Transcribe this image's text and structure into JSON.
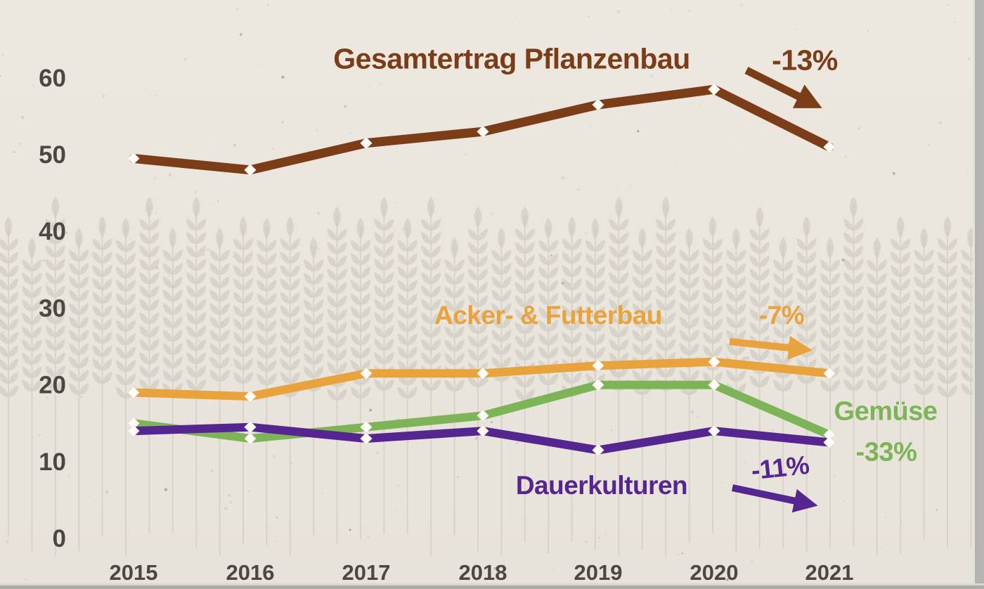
{
  "chart_data": {
    "type": "line",
    "title": "Gesamtertrag Pflanzenbau",
    "categories": [
      "2015",
      "2016",
      "2017",
      "2018",
      "2019",
      "2020",
      "2021"
    ],
    "y_ticks": [
      0,
      10,
      20,
      30,
      40,
      50,
      60
    ],
    "ylim": [
      0,
      60
    ],
    "grid": false,
    "legend_position": "inline-labels",
    "marker": "white-diamond",
    "series": [
      {
        "name": "Gesamtertrag Pflanzenbau",
        "values": [
          49.5,
          48,
          51.5,
          53,
          56.5,
          58.5,
          51
        ],
        "color": "#7b3d17",
        "change_label": "-13%"
      },
      {
        "name": "Acker- & Futterbau",
        "values": [
          19,
          18.5,
          21.5,
          21.5,
          22.5,
          23,
          21.5
        ],
        "color": "#e8a33c",
        "change_label": "-7%"
      },
      {
        "name": "Gemüse",
        "values": [
          15,
          13,
          14.5,
          16,
          20,
          20,
          13.5
        ],
        "color": "#7db457",
        "change_label": "-33%"
      },
      {
        "name": "Dauerkulturen",
        "values": [
          14,
          14.5,
          13,
          14,
          11.5,
          14,
          12.5
        ],
        "color": "#55268f",
        "change_label": "-11%"
      }
    ]
  },
  "labels": {
    "title": "Gesamtertrag Pflanzenbau",
    "title_change": "-13%",
    "acker": "Acker- & Futterbau",
    "acker_change": "-7%",
    "gemuese": "Gemüse",
    "gemuese_change": "-33%",
    "dauer": "Dauerkulturen",
    "dauer_change": "-11%"
  },
  "colors": {
    "paper": "#e9e5dd",
    "wheat": "#cfc9be",
    "axis_text": "#4b4742",
    "brown": "#7b3d17",
    "orange": "#e8a33c",
    "green": "#7db457",
    "purple": "#55268f"
  }
}
